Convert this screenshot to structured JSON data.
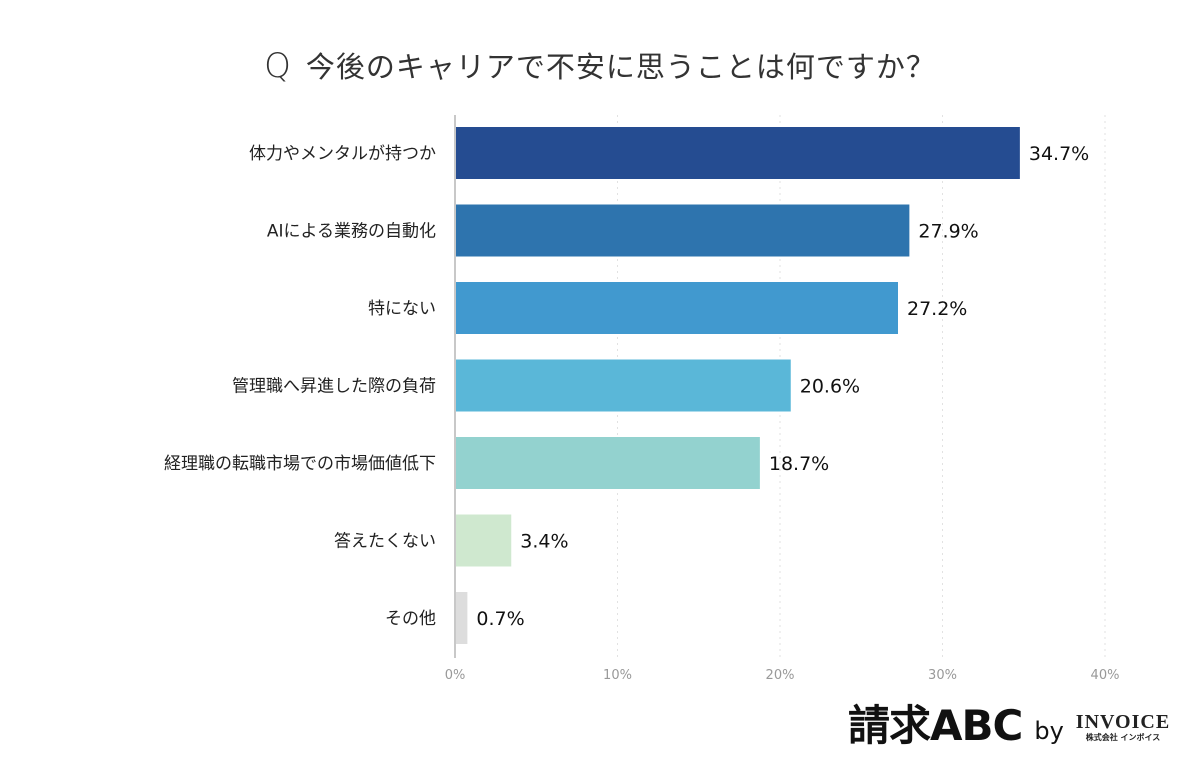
{
  "chart_data": {
    "type": "bar",
    "orientation": "horizontal",
    "title_prefix": "Q",
    "title": "今後のキャリアで不安に思うことは何ですか？",
    "categories": [
      "体力やメンタルが持つか",
      "AIによる業務の自動化",
      "特にない",
      "管理職へ昇進した際の負荷",
      "経理職の転職市場での市場価値低下",
      "答えたくない",
      "その他"
    ],
    "values": [
      34.7,
      27.9,
      27.2,
      20.6,
      18.7,
      3.4,
      0.7
    ],
    "value_labels": [
      "34.7%",
      "27.9%",
      "27.2%",
      "20.6%",
      "18.7%",
      "3.4%",
      "0.7%"
    ],
    "colors": [
      "#254c91",
      "#2e74ae",
      "#4199cf",
      "#5ab7d8",
      "#93d2cf",
      "#cfe8cf",
      "#dddddd"
    ],
    "xlim": [
      0,
      40
    ],
    "xticks": [
      0,
      10,
      20,
      30,
      40
    ],
    "xtick_labels": [
      "0%",
      "10%",
      "20%",
      "30%",
      "40%"
    ],
    "grid": "vertical dotted",
    "xlabel": "",
    "ylabel": ""
  },
  "logo": {
    "main": "請求ABC",
    "by": "by",
    "brand": "INVOICE",
    "brand_sub": "株式会社 インボイス"
  }
}
